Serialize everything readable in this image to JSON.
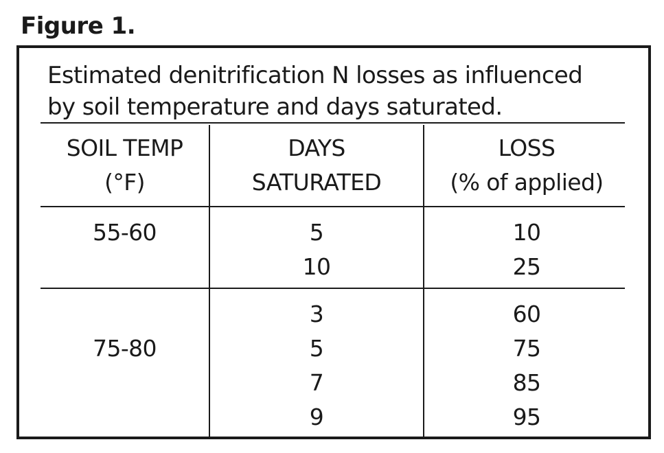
{
  "figure_label": "Figure 1.",
  "caption": {
    "line1": "Estimated denitrification N losses as influenced",
    "line2": "by soil temperature and days saturated."
  },
  "table": {
    "headers": [
      {
        "line1": "SOIL TEMP",
        "line2": "(°F)"
      },
      {
        "line1": "DAYS",
        "line2": "SATURATED"
      },
      {
        "line1": "LOSS",
        "line2": "(% of applied)"
      }
    ],
    "groups": [
      {
        "soil_temp": "55-60",
        "rows": [
          {
            "days": "5",
            "loss": "10"
          },
          {
            "days": "10",
            "loss": "25"
          }
        ]
      },
      {
        "soil_temp": "75-80",
        "rows": [
          {
            "days": "3",
            "loss": "60"
          },
          {
            "days": "5",
            "loss": "75"
          },
          {
            "days": "7",
            "loss": "85"
          },
          {
            "days": "9",
            "loss": "95"
          }
        ]
      }
    ]
  }
}
